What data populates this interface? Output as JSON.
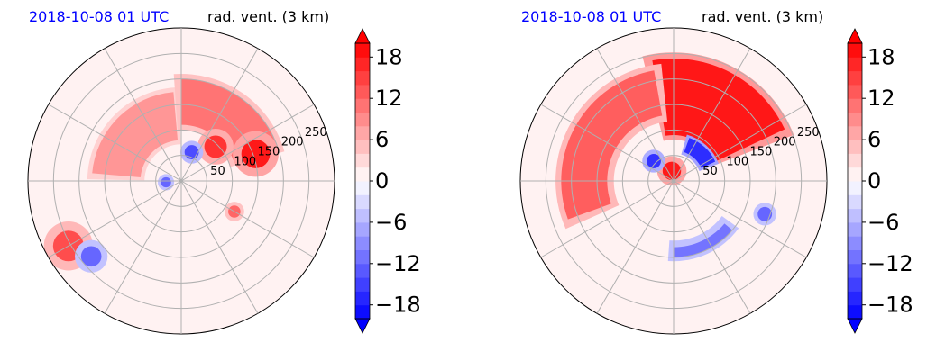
{
  "chart_data": [
    {
      "type": "heatmap",
      "panel": "left",
      "title_date": "2018-10-08 01 UTC",
      "title_var": "rad. vent. (3 km)",
      "radial_ticks": [
        "50",
        "100",
        "150",
        "200",
        "250"
      ],
      "colorbar": {
        "ticks": [
          "18",
          "12",
          "6",
          "0",
          "−6",
          "−12",
          "−18"
        ],
        "values": [
          18,
          12,
          6,
          0,
          -6,
          -12,
          -18
        ],
        "range": [
          -20,
          20
        ],
        "extend": "both"
      },
      "grid": true,
      "features": [
        {
          "kind": "arc",
          "sign": 1,
          "from_deg": 95,
          "to_deg": 175,
          "r0": 80,
          "r1": 175,
          "val": 9
        },
        {
          "kind": "arc",
          "sign": 1,
          "from_deg": 20,
          "to_deg": 90,
          "r0": 110,
          "r1": 200,
          "val": 12
        },
        {
          "kind": "blob",
          "sign": 1,
          "az": 20,
          "r": 155,
          "rad": 28,
          "val": 18
        },
        {
          "kind": "blob",
          "sign": 1,
          "az": 45,
          "r": 95,
          "rad": 22,
          "val": 16
        },
        {
          "kind": "blob",
          "sign": -1,
          "az": 70,
          "r": 60,
          "rad": 14,
          "val": -14
        },
        {
          "kind": "blob",
          "sign": -1,
          "az": 185,
          "r": 30,
          "rad": 10,
          "val": -12
        },
        {
          "kind": "blob",
          "sign": 1,
          "az": 210,
          "r": 255,
          "rad": 30,
          "val": 14
        },
        {
          "kind": "blob",
          "sign": -1,
          "az": 220,
          "r": 230,
          "rad": 20,
          "val": -12
        },
        {
          "kind": "blob",
          "sign": 1,
          "az": -30,
          "r": 120,
          "rad": 12,
          "val": 12
        }
      ]
    },
    {
      "type": "heatmap",
      "panel": "right",
      "title_date": "2018-10-08 01 UTC",
      "title_var": "rad. vent. (3 km)",
      "radial_ticks": [
        "50",
        "100",
        "150",
        "200",
        "250"
      ],
      "colorbar": {
        "ticks": [
          "18",
          "12",
          "6",
          "0",
          "−6",
          "−12",
          "−18"
        ],
        "values": [
          18,
          12,
          6,
          0,
          -6,
          -12,
          -18
        ],
        "range": [
          -20,
          20
        ],
        "extend": "both"
      },
      "grid": true,
      "features": [
        {
          "kind": "arc",
          "sign": 1,
          "from_deg": 25,
          "to_deg": 100,
          "r0": 90,
          "r1": 240,
          "val": 20
        },
        {
          "kind": "arc",
          "sign": 1,
          "from_deg": 100,
          "to_deg": 200,
          "r0": 130,
          "r1": 220,
          "val": 14
        },
        {
          "kind": "blob",
          "sign": 1,
          "az": 100,
          "r": 20,
          "rad": 18,
          "val": 18
        },
        {
          "kind": "arc",
          "sign": -1,
          "from_deg": 25,
          "to_deg": 70,
          "r0": 60,
          "r1": 90,
          "val": -18
        },
        {
          "kind": "blob",
          "sign": -1,
          "az": 135,
          "r": 55,
          "rad": 14,
          "val": -16
        },
        {
          "kind": "arc",
          "sign": -1,
          "from_deg": 270,
          "to_deg": 320,
          "r0": 130,
          "r1": 150,
          "val": -12
        },
        {
          "kind": "blob",
          "sign": -1,
          "az": 340,
          "r": 190,
          "rad": 14,
          "val": -12
        }
      ]
    }
  ]
}
